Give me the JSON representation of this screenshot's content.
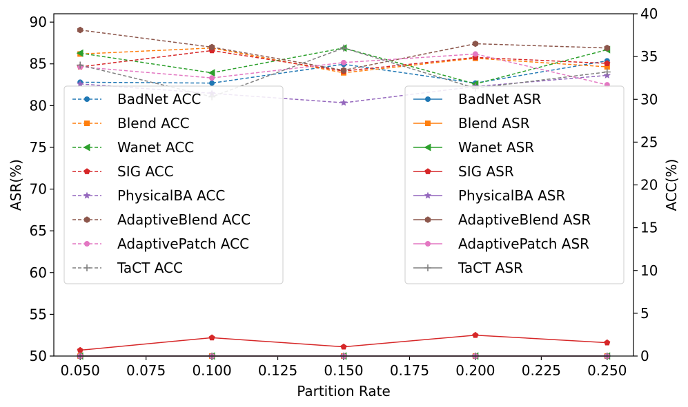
{
  "chart_data": {
    "type": "line",
    "x": [
      0.05,
      0.1,
      0.15,
      0.2,
      0.25
    ],
    "xlabel": "Partition Rate",
    "ylabel_left": "ASR(%)",
    "ylabel_right": "ACC(%)",
    "xlim": [
      0.04,
      0.26
    ],
    "ylim_left": [
      50,
      91
    ],
    "ylim_right": [
      0,
      40
    ],
    "x_ticks": [
      0.05,
      0.075,
      0.1,
      0.125,
      0.15,
      0.175,
      0.2,
      0.225,
      0.25
    ],
    "x_tick_labels": [
      "0.050",
      "0.075",
      "0.100",
      "0.125",
      "0.150",
      "0.175",
      "0.200",
      "0.225",
      "0.250"
    ],
    "y_left_ticks": [
      50,
      55,
      60,
      65,
      70,
      75,
      80,
      85,
      90
    ],
    "y_right_ticks": [
      0,
      5,
      10,
      15,
      20,
      25,
      30,
      35,
      40
    ],
    "acc_series": [
      {
        "name": "BadNet ACC",
        "color": "#1f77b4",
        "marker": "circle",
        "values": [
          32.0,
          31.9,
          34.1,
          31.9,
          34.5
        ]
      },
      {
        "name": "Blend ACC",
        "color": "#ff7f0e",
        "marker": "square",
        "values": [
          35.3,
          36.0,
          33.1,
          34.8,
          33.8
        ]
      },
      {
        "name": "Wanet ACC",
        "color": "#2ca02c",
        "marker": "triangle-left",
        "values": [
          35.4,
          33.1,
          36.0,
          31.8,
          35.8
        ]
      },
      {
        "name": "SIG ACC",
        "color": "#d62728",
        "marker": "pentagon",
        "values": [
          33.8,
          35.7,
          33.3,
          34.9,
          34.2
        ]
      },
      {
        "name": "PhysicalBA ACC",
        "color": "#9467bd",
        "marker": "star",
        "values": [
          31.8,
          30.7,
          29.6,
          31.5,
          32.8
        ]
      },
      {
        "name": "AdaptiveBlend ACC",
        "color": "#8c564b",
        "marker": "hexagon",
        "values": [
          38.1,
          36.1,
          33.4,
          36.5,
          36.0
        ]
      },
      {
        "name": "AdaptivePatch ACC",
        "color": "#e377c2",
        "marker": "circle",
        "values": [
          33.8,
          32.5,
          34.3,
          35.3,
          31.7
        ]
      },
      {
        "name": "TaCT ACC",
        "color": "#7f7f7f",
        "marker": "plus",
        "values": [
          34.0,
          30.3,
          36.0,
          31.3,
          33.2
        ]
      }
    ],
    "asr_series": [
      {
        "name": "BadNet ASR",
        "color": "#1f77b4",
        "marker": "circle",
        "values": [
          50.0,
          50.0,
          50.0,
          50.0,
          50.0
        ]
      },
      {
        "name": "Blend ASR",
        "color": "#ff7f0e",
        "marker": "square",
        "values": [
          50.0,
          50.0,
          50.0,
          50.0,
          50.0
        ]
      },
      {
        "name": "Wanet ASR",
        "color": "#2ca02c",
        "marker": "triangle-left",
        "values": [
          50.0,
          50.0,
          50.0,
          50.0,
          50.0
        ]
      },
      {
        "name": "SIG ASR",
        "color": "#d62728",
        "marker": "pentagon",
        "values": [
          50.7,
          52.2,
          51.1,
          52.5,
          51.6
        ]
      },
      {
        "name": "PhysicalBA ASR",
        "color": "#9467bd",
        "marker": "star",
        "values": [
          50.0,
          50.0,
          50.0,
          50.0,
          50.0
        ]
      },
      {
        "name": "AdaptiveBlend ASR",
        "color": "#8c564b",
        "marker": "hexagon",
        "values": [
          50.0,
          50.0,
          50.0,
          50.0,
          50.0
        ]
      },
      {
        "name": "AdaptivePatch ASR",
        "color": "#e377c2",
        "marker": "circle",
        "values": [
          50.0,
          50.0,
          50.0,
          50.0,
          50.0
        ]
      },
      {
        "name": "TaCT ASR",
        "color": "#7f7f7f",
        "marker": "plus",
        "values": [
          50.0,
          50.0,
          50.0,
          50.0,
          50.0
        ]
      }
    ],
    "legend_left_location": "upper-left",
    "legend_right_location": "upper-right",
    "grid": false
  }
}
